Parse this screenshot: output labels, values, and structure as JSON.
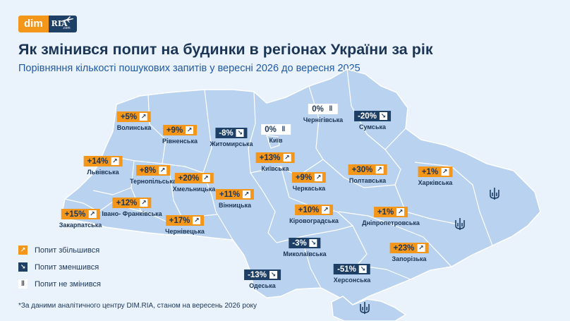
{
  "logo": {
    "part1": "dim",
    "part2": "RIA",
    "part2_sub": ".com"
  },
  "title": "Як змінився попит на будинки в регіонах України за рік",
  "subtitle": "Порівняння кількості пошукових запитів у вересні 2026 до вересня 2025",
  "colors": {
    "increase": "#f3961a",
    "decrease": "#1e3f66",
    "unchanged": "#ffffff",
    "map": "#b9d2ef",
    "background": "#eaf2fb"
  },
  "icons": {
    "increase": "arrow-up-right",
    "decrease": "arrow-down-right",
    "unchanged": "pause-bars"
  },
  "regions": [
    {
      "name": "Волинська",
      "change": "+5%",
      "trend": "up"
    },
    {
      "name": "Рівненська",
      "change": "+9%",
      "trend": "up"
    },
    {
      "name": "Житомирська",
      "change": "-8%",
      "trend": "down"
    },
    {
      "name": "Чернігівська",
      "change": "0%",
      "trend": "same"
    },
    {
      "name": "Сумська",
      "change": "-20%",
      "trend": "down"
    },
    {
      "name": "Київ",
      "change": "0%",
      "trend": "same"
    },
    {
      "name": "Львівська",
      "change": "+14%",
      "trend": "up"
    },
    {
      "name": "Київська",
      "change": "+13%",
      "trend": "up"
    },
    {
      "name": "Тернопільська",
      "change": "+8%",
      "trend": "up"
    },
    {
      "name": "Хмельницька",
      "change": "+20%",
      "trend": "up"
    },
    {
      "name": "Полтавська",
      "change": "+30%",
      "trend": "up"
    },
    {
      "name": "Харківська",
      "change": "+1%",
      "trend": "up"
    },
    {
      "name": "Черкаська",
      "change": "+9%",
      "trend": "up"
    },
    {
      "name": "Вінницька",
      "change": "+11%",
      "trend": "up"
    },
    {
      "name": "Івано- Франківська",
      "change": "+12%",
      "trend": "up"
    },
    {
      "name": "Закарпатська",
      "change": "+15%",
      "trend": "up"
    },
    {
      "name": "Кіровоградська",
      "change": "+10%",
      "trend": "up"
    },
    {
      "name": "Дніпропетровська",
      "change": "+1%",
      "trend": "up"
    },
    {
      "name": "Чернівецька",
      "change": "+17%",
      "trend": "up"
    },
    {
      "name": "Миколаївська",
      "change": "-3%",
      "trend": "down"
    },
    {
      "name": "Запорізька",
      "change": "+23%",
      "trend": "up"
    },
    {
      "name": "Херсонська",
      "change": "-51%",
      "trend": "down"
    },
    {
      "name": "Одеська",
      "change": "-13%",
      "trend": "down"
    }
  ],
  "legend": [
    {
      "label": "Попит збільшився",
      "trend": "up"
    },
    {
      "label": "Попит зменшився",
      "trend": "down"
    },
    {
      "label": "Попит не змінився",
      "trend": "same"
    }
  ],
  "footnote": "*За даними аналітичного центру DIM.RIA, станом на вересень 2026 року"
}
